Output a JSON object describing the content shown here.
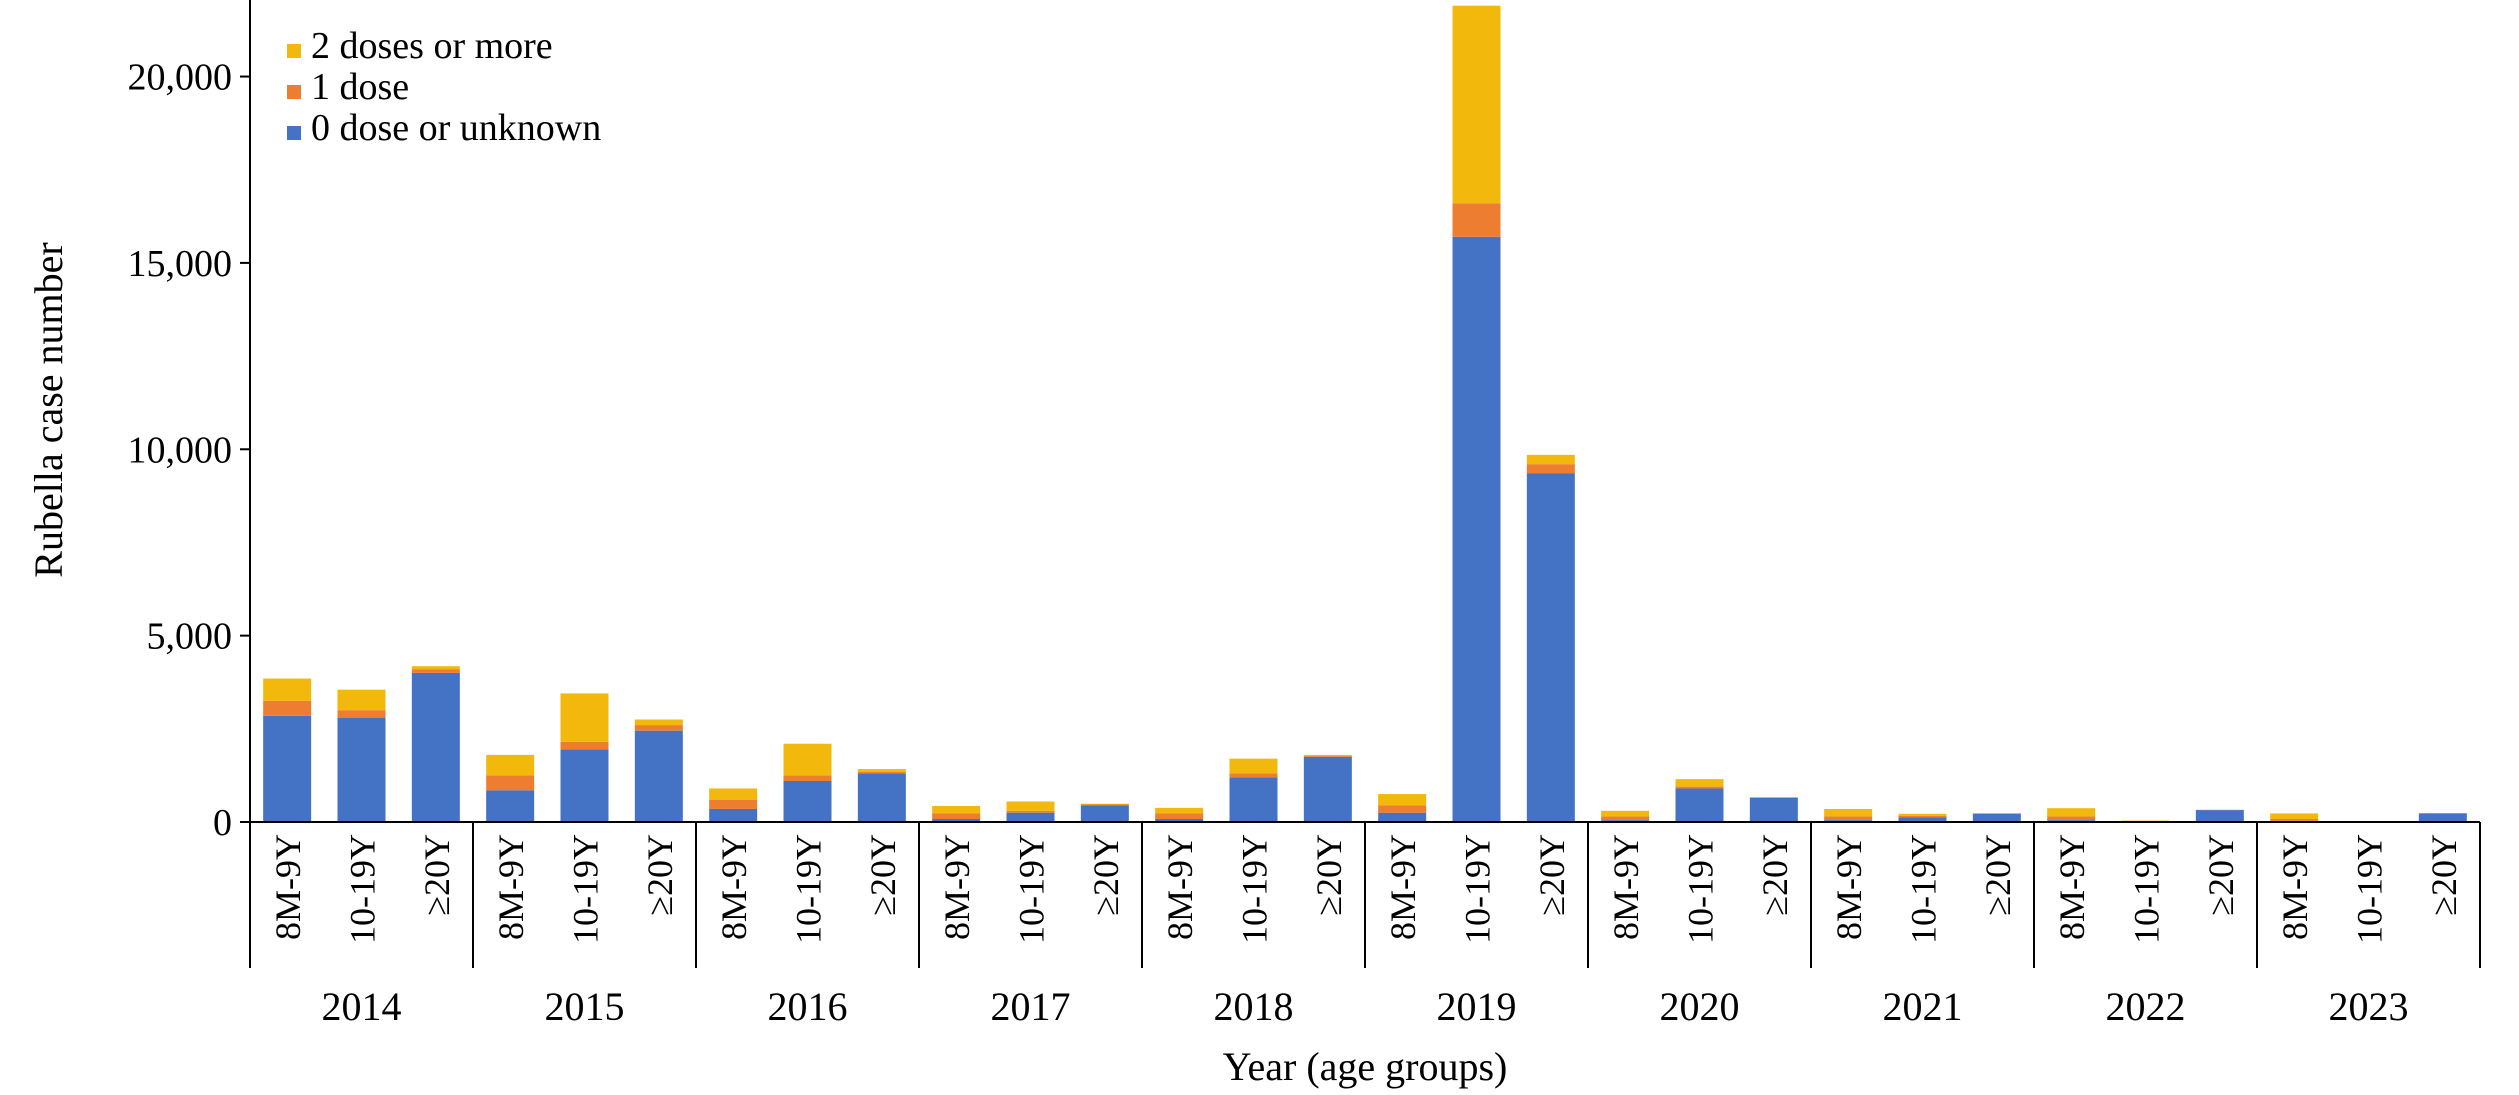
{
  "chart_data": {
    "type": "bar",
    "stacked": true,
    "title": "",
    "xlabel": "Year (age groups)",
    "ylabel": "Rubella case number",
    "ylim": [
      0,
      22000
    ],
    "yticks": [
      0,
      5000,
      10000,
      15000,
      20000
    ],
    "ytick_labels": [
      "0",
      "5,000",
      "10,000",
      "15,000",
      "20,000"
    ],
    "grid": false,
    "legend_position": "top-left",
    "years": [
      "2014",
      "2015",
      "2016",
      "2017",
      "2018",
      "2019",
      "2020",
      "2021",
      "2022",
      "2023"
    ],
    "age_groups": [
      "8M-9Y",
      "10-19Y",
      "≥20Y"
    ],
    "series": [
      {
        "name": "0 dose or unknown",
        "color": "#4472C4",
        "values": [
          2850,
          2800,
          4000,
          850,
          1950,
          2450,
          350,
          1100,
          1300,
          80,
          250,
          450,
          80,
          1200,
          1750,
          250,
          15700,
          9350,
          50,
          900,
          650,
          50,
          120,
          220,
          50,
          20,
          320,
          30,
          10,
          230
        ]
      },
      {
        "name": "1 dose",
        "color": "#ED7D31",
        "values": [
          400,
          200,
          100,
          400,
          200,
          150,
          250,
          150,
          50,
          150,
          50,
          20,
          150,
          100,
          20,
          200,
          900,
          250,
          100,
          50,
          10,
          100,
          50,
          10,
          100,
          10,
          5,
          50,
          5,
          5
        ]
      },
      {
        "name": "2 doses or more",
        "color": "#F2B90C",
        "values": [
          600,
          550,
          80,
          550,
          1300,
          150,
          300,
          850,
          70,
          200,
          250,
          20,
          150,
          400,
          30,
          300,
          5300,
          250,
          150,
          200,
          10,
          200,
          50,
          10,
          220,
          10,
          5,
          150,
          5,
          5
        ]
      }
    ]
  }
}
